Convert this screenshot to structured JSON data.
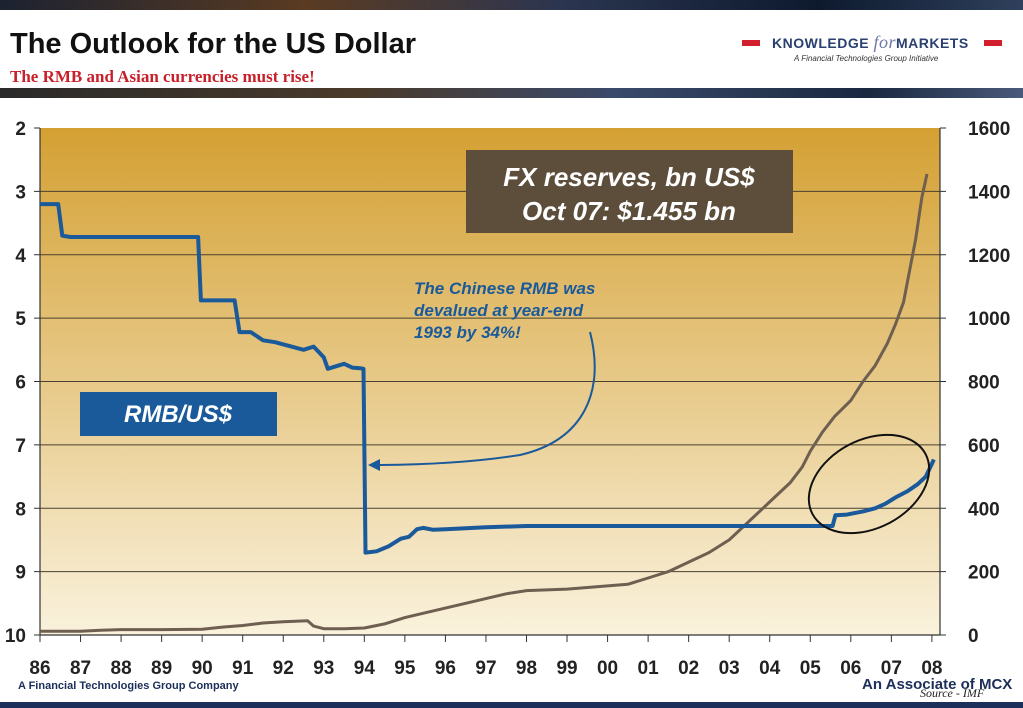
{
  "header": {
    "title": "The Outlook for the US Dollar",
    "subtitle": "The RMB and Asian currencies must rise!",
    "logo": {
      "part1": "KNOWLEDGE ",
      "part2": "for",
      "part3": "MARKETS",
      "tagline": "A Financial Technologies Group Initiative"
    }
  },
  "footer": {
    "left": "A Financial Technologies Group Company",
    "right": "An Associate of MCX",
    "source": "Source - IMF"
  },
  "colors": {
    "rmb_line": "#1a5a9a",
    "fx_line": "#6e5f50",
    "label_box": "#1a5a9a",
    "callout_box": "#5c4e3a",
    "background_top": "#d4a033",
    "background_bottom": "#faf2dd"
  },
  "chart_data": {
    "type": "line",
    "x_tick_labels": [
      "86",
      "87",
      "88",
      "89",
      "90",
      "91",
      "92",
      "93",
      "94",
      "95",
      "96",
      "97",
      "98",
      "99",
      "00",
      "01",
      "02",
      "03",
      "04",
      "05",
      "06",
      "07",
      "08"
    ],
    "xlim": [
      1986,
      2008.2
    ],
    "left_axis": {
      "ylim": [
        2,
        10
      ],
      "inverted": true,
      "ticks": [
        2,
        3,
        4,
        5,
        6,
        7,
        8,
        9,
        10
      ]
    },
    "right_axis": {
      "ylim": [
        0,
        1600
      ],
      "ticks": [
        0,
        200,
        400,
        600,
        800,
        1000,
        1200,
        1400,
        1600
      ]
    },
    "grid": "horizontal",
    "series": [
      {
        "name": "RMB/US$",
        "axis": "left",
        "points": [
          [
            1986.0,
            3.2
          ],
          [
            1986.45,
            3.2
          ],
          [
            1986.55,
            3.7
          ],
          [
            1986.75,
            3.72
          ],
          [
            1987.0,
            3.72
          ],
          [
            1989.9,
            3.72
          ],
          [
            1989.97,
            4.72
          ],
          [
            1990.8,
            4.72
          ],
          [
            1990.92,
            5.22
          ],
          [
            1991.2,
            5.22
          ],
          [
            1991.5,
            5.35
          ],
          [
            1991.8,
            5.38
          ],
          [
            1992.2,
            5.45
          ],
          [
            1992.5,
            5.5
          ],
          [
            1992.75,
            5.45
          ],
          [
            1992.9,
            5.55
          ],
          [
            1993.0,
            5.62
          ],
          [
            1993.1,
            5.8
          ],
          [
            1993.3,
            5.76
          ],
          [
            1993.5,
            5.72
          ],
          [
            1993.7,
            5.78
          ],
          [
            1993.9,
            5.79
          ],
          [
            1993.98,
            5.8
          ],
          [
            1994.03,
            8.7
          ],
          [
            1994.3,
            8.68
          ],
          [
            1994.6,
            8.6
          ],
          [
            1994.9,
            8.48
          ],
          [
            1995.1,
            8.45
          ],
          [
            1995.3,
            8.33
          ],
          [
            1995.45,
            8.31
          ],
          [
            1995.7,
            8.34
          ],
          [
            1996.0,
            8.33
          ],
          [
            1997.0,
            8.3
          ],
          [
            1998.0,
            8.28
          ],
          [
            2005.55,
            8.28
          ],
          [
            2005.62,
            8.11
          ],
          [
            2005.9,
            8.1
          ],
          [
            2006.3,
            8.05
          ],
          [
            2006.6,
            8.0
          ],
          [
            2006.85,
            7.93
          ],
          [
            2007.1,
            7.83
          ],
          [
            2007.4,
            7.73
          ],
          [
            2007.65,
            7.62
          ],
          [
            2007.85,
            7.5
          ],
          [
            2008.05,
            7.23
          ]
        ]
      },
      {
        "name": "FX reserves, bn US$",
        "axis": "right",
        "points": [
          [
            1986.0,
            12
          ],
          [
            1987.0,
            12
          ],
          [
            1987.5,
            15
          ],
          [
            1988.0,
            17
          ],
          [
            1989.0,
            17
          ],
          [
            1990.0,
            18
          ],
          [
            1990.5,
            25
          ],
          [
            1991.0,
            30
          ],
          [
            1991.5,
            38
          ],
          [
            1992.0,
            42
          ],
          [
            1992.6,
            45
          ],
          [
            1992.75,
            28
          ],
          [
            1993.0,
            20
          ],
          [
            1993.5,
            20
          ],
          [
            1994.0,
            22
          ],
          [
            1994.5,
            35
          ],
          [
            1995.0,
            55
          ],
          [
            1995.5,
            70
          ],
          [
            1996.0,
            85
          ],
          [
            1996.5,
            100
          ],
          [
            1997.0,
            115
          ],
          [
            1997.5,
            130
          ],
          [
            1998.0,
            140
          ],
          [
            1999.0,
            145
          ],
          [
            2000.0,
            155
          ],
          [
            2000.5,
            160
          ],
          [
            2001.0,
            180
          ],
          [
            2001.5,
            200
          ],
          [
            2002.0,
            230
          ],
          [
            2002.5,
            260
          ],
          [
            2003.0,
            300
          ],
          [
            2003.5,
            360
          ],
          [
            2004.0,
            420
          ],
          [
            2004.5,
            480
          ],
          [
            2004.8,
            530
          ],
          [
            2005.0,
            580
          ],
          [
            2005.3,
            640
          ],
          [
            2005.6,
            690
          ],
          [
            2006.0,
            740
          ],
          [
            2006.3,
            800
          ],
          [
            2006.6,
            850
          ],
          [
            2006.9,
            920
          ],
          [
            2007.1,
            980
          ],
          [
            2007.3,
            1050
          ],
          [
            2007.45,
            1150
          ],
          [
            2007.6,
            1250
          ],
          [
            2007.75,
            1380
          ],
          [
            2007.88,
            1455
          ]
        ]
      }
    ],
    "annotations": {
      "fx_box": [
        "FX reserves, bn US$",
        "Oct 07: $1.455 bn"
      ],
      "rmb_label": "RMB/US$",
      "devaluation_note": [
        "The Chinese RMB was",
        "devalued at year-end",
        "1993 by 34%!"
      ]
    }
  }
}
